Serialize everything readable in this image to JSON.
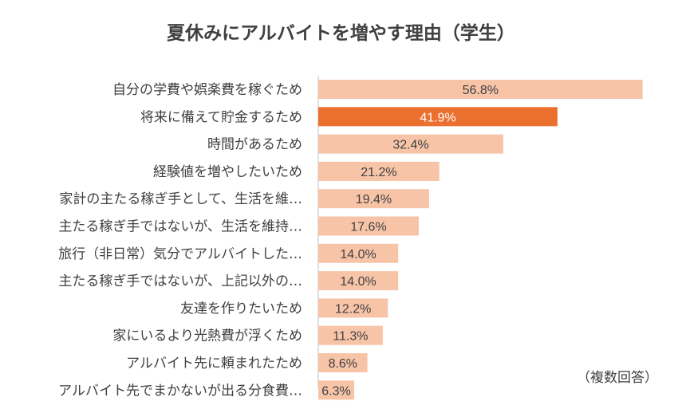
{
  "chart_data": {
    "type": "bar",
    "orientation": "horizontal",
    "title": "夏休みにアルバイトを増やす理由（学生）",
    "note": "（複数回答）",
    "categories": [
      "自分の学費や娯楽費を稼ぐため",
      "将来に備えて貯金するため",
      "時間があるため",
      "経験値を増やしたいため",
      "家計の主たる稼ぎ手として、生活を維…",
      "主たる稼ぎ手ではないが、生活を維持…",
      "旅行（非日常）気分でアルバイトした…",
      "主たる稼ぎ手ではないが、上記以外の…",
      "友達を作りたいため",
      "家にいるより光熱費が浮くため",
      "アルバイト先に頼まれたため",
      "アルバイト先でまかないが出る分食費…"
    ],
    "values": [
      56.8,
      41.9,
      32.4,
      21.2,
      19.4,
      17.6,
      14.0,
      14.0,
      12.2,
      11.3,
      8.6,
      6.3
    ],
    "value_labels": [
      "56.8%",
      "41.9%",
      "32.4%",
      "21.2%",
      "19.4%",
      "17.6%",
      "14.0%",
      "14.0%",
      "12.2%",
      "11.3%",
      "8.6%",
      "6.3%"
    ],
    "highlight_index": 1,
    "xlim": [
      0,
      57
    ],
    "colors": {
      "bar": "#F7C4A8",
      "highlight": "#EB7030",
      "axis": "#BFBFBF",
      "text": "#404040",
      "highlight_text": "#FFFFFF"
    }
  }
}
